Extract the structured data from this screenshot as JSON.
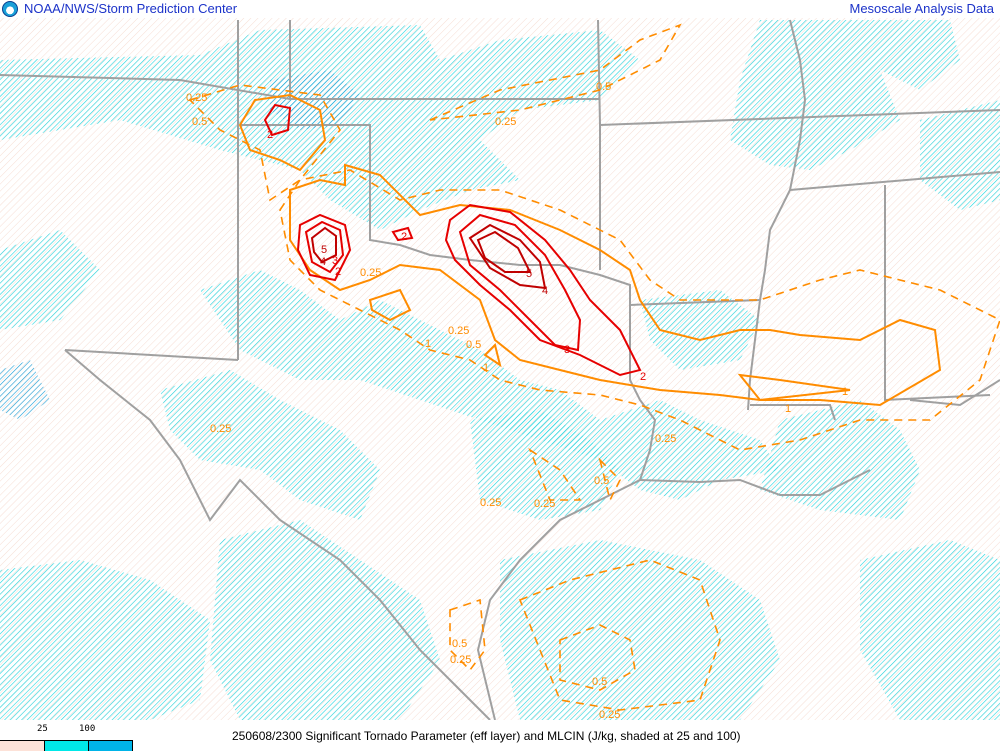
{
  "header": {
    "left_title": "NOAA/NWS/Storm Prediction Center",
    "right_title": "Mesoscale Analysis Data",
    "logo": "noaa-logo"
  },
  "legend": {
    "ticks": [
      "25",
      "100"
    ],
    "colors": [
      "#fde2d8",
      "#00e8e8",
      "#00b4e8"
    ]
  },
  "caption": "250608/2300 Significant Tornado Parameter (eff layer) and MLCIN (J/kg, shaded at 25 and 100)",
  "colors": {
    "stp_low": "#ff8c00",
    "stp_high": "#e60000",
    "stp_top": "#c00000",
    "borders": "#a0a0a0",
    "cin_25": "#00d8e0",
    "cin_100": "#1a9fd8"
  },
  "contour_labels": [
    "0.25",
    "0.5",
    "2",
    "0.25",
    "0.5",
    "5",
    "4",
    "3",
    "2",
    "0.25",
    "2",
    "5",
    "4",
    "3",
    "2",
    "0.25",
    "0.5",
    "1",
    "1",
    "0.25",
    "0.25",
    "1",
    "1",
    "0.5",
    "0.25",
    "0.25",
    "0.5",
    "0.25",
    "0.5",
    "0.25"
  ]
}
